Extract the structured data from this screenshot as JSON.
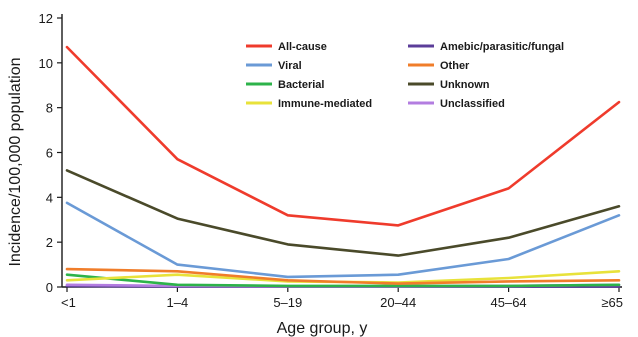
{
  "chart_data": {
    "type": "line",
    "xlabel": "Age group, y",
    "ylabel": "Incidence/100,000 population",
    "categories": [
      "<1",
      "1–4",
      "5–19",
      "20–44",
      "45–64",
      "≥65"
    ],
    "ylim": [
      0,
      12
    ],
    "yticks": [
      0,
      2,
      4,
      6,
      8,
      10,
      12
    ],
    "grid": false,
    "legend_position": "top-center",
    "series": [
      {
        "name": "All-cause",
        "color": "#ef3b2c",
        "values": [
          10.7,
          5.7,
          3.2,
          2.75,
          4.4,
          8.25
        ]
      },
      {
        "name": "Viral",
        "color": "#6a9ad6",
        "values": [
          3.75,
          1.0,
          0.45,
          0.55,
          1.25,
          3.2
        ]
      },
      {
        "name": "Bacterial",
        "color": "#2db34a",
        "values": [
          0.55,
          0.1,
          0.05,
          0.05,
          0.05,
          0.1
        ]
      },
      {
        "name": "Immune-mediated",
        "color": "#e8e23a",
        "values": [
          0.3,
          0.55,
          0.25,
          0.2,
          0.4,
          0.7
        ]
      },
      {
        "name": "Amebic/parasitic/fungal",
        "color": "#5b3d99",
        "values": [
          0.05,
          0.02,
          0.02,
          0.02,
          0.02,
          0.02
        ]
      },
      {
        "name": "Other",
        "color": "#f07d2a",
        "values": [
          0.8,
          0.7,
          0.3,
          0.15,
          0.25,
          0.3
        ]
      },
      {
        "name": "Unknown",
        "color": "#4a4a2a",
        "values": [
          5.2,
          3.05,
          1.9,
          1.4,
          2.2,
          3.6
        ]
      },
      {
        "name": "Unclassified",
        "color": "#b37de0",
        "values": [
          0.1,
          0.05,
          0.03,
          0.03,
          0.05,
          0.1
        ]
      }
    ],
    "legend_order": [
      [
        "All-cause",
        "Amebic/parasitic/fungal"
      ],
      [
        "Viral",
        "Other"
      ],
      [
        "Bacterial",
        "Unknown"
      ],
      [
        "Immune-mediated",
        "Unclassified"
      ]
    ]
  }
}
